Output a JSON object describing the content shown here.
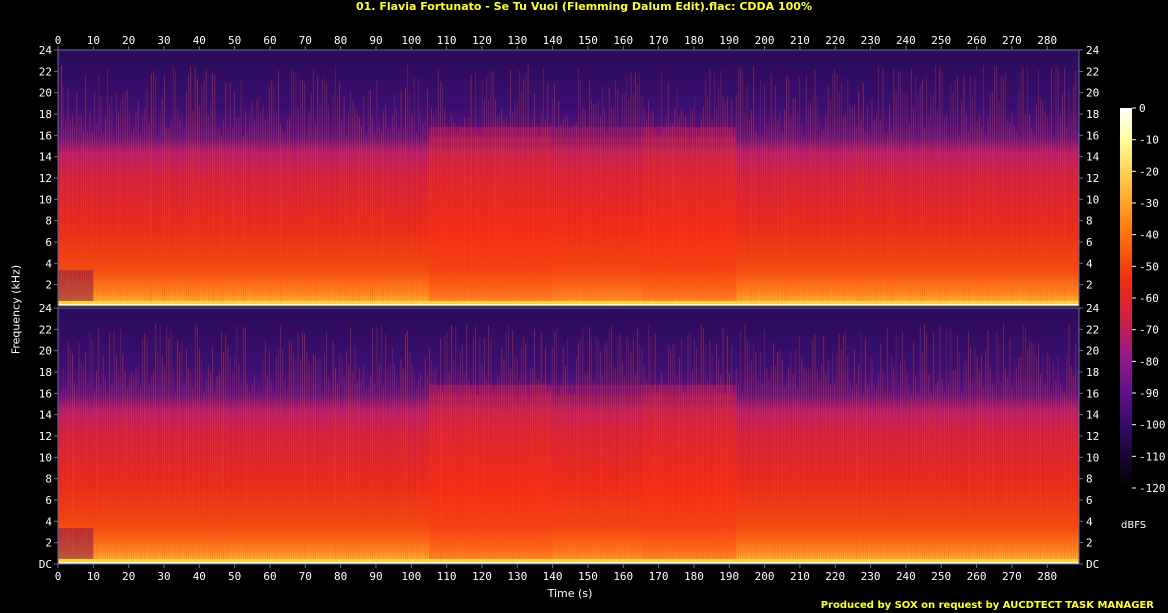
{
  "title": "01. Flavia Fortunato - Se Tu Vuoi (Flemming Dalum Edit).flac: CDDA 100%",
  "footer": "Produced by SOX on request by AUCDTECT TASK MANAGER",
  "colors": {
    "title": "#ffff33",
    "background": "#000000",
    "axis": "#6a6a9a",
    "scale": [
      "#000000",
      "#1a0633",
      "#3a0a6a",
      "#5a1088",
      "#9a1a8a",
      "#d02040",
      "#f03010",
      "#ff7a10",
      "#ffc040",
      "#ffffc0",
      "#ffffff"
    ]
  },
  "chart_data": {
    "type": "heatmap",
    "title": "01. Flavia Fortunato - Se Tu Vuoi (Flemming Dalum Edit).flac: CDDA 100%",
    "xlabel": "Time (s)",
    "ylabel": "Frequency (kHz)",
    "xlim": [
      0,
      289
    ],
    "ylim": [
      0,
      24
    ],
    "x_ticks": [
      "0",
      "10",
      "20",
      "30",
      "40",
      "50",
      "60",
      "70",
      "80",
      "90",
      "100",
      "110",
      "120",
      "130",
      "140",
      "150",
      "160",
      "170",
      "180",
      "190",
      "200",
      "210",
      "220",
      "230",
      "240",
      "250",
      "260",
      "270",
      "280"
    ],
    "y_ticks_top": [
      "24",
      "22",
      "20",
      "18",
      "16",
      "14",
      "12",
      "10",
      "8",
      "6",
      "4",
      "2"
    ],
    "y_ticks_bottom": [
      "24",
      "22",
      "20",
      "18",
      "16",
      "14",
      "12",
      "10",
      "8",
      "6",
      "4",
      "2",
      "DC"
    ],
    "channels": 2,
    "colorbar": {
      "label": "dBFS",
      "range": [
        -120,
        0
      ],
      "ticks": [
        "0",
        "-10",
        "-20",
        "-30",
        "-40",
        "-50",
        "-60",
        "-70",
        "-80",
        "-90",
        "-100",
        "-110",
        "-120"
      ]
    },
    "energy_segments": [
      {
        "start": 0,
        "end": 10,
        "level": "moderate"
      },
      {
        "start": 10,
        "end": 105,
        "level": "moderate"
      },
      {
        "start": 105,
        "end": 140,
        "level": "high"
      },
      {
        "start": 140,
        "end": 165,
        "level": "moderate-high"
      },
      {
        "start": 165,
        "end": 192,
        "level": "high"
      },
      {
        "start": 192,
        "end": 289,
        "level": "moderate"
      }
    ]
  }
}
